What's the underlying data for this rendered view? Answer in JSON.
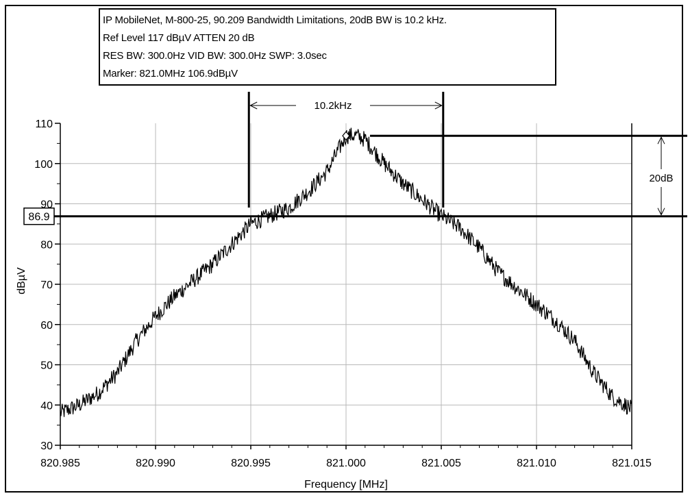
{
  "info": {
    "line1": "IP MobileNet, M-800-25, 90.209 Bandwidth Limitations, 20dB BW is 10.2 kHz.",
    "line2": "Ref Level 117 dBµV    ATTEN 20 dB",
    "line3": "RES BW: 300.0Hz  VID BW: 300.0Hz  SWP: 3.0sec",
    "line4": "Marker: 821.0MHz  106.9dBµV"
  },
  "annotations": {
    "bandwidth_label": "10.2kHz",
    "delta_label": "20dB",
    "level_label": "86.9"
  },
  "chart_data": {
    "type": "line",
    "title": "",
    "xlabel": "Frequency [MHz]",
    "ylabel": "dBµV",
    "xlim": [
      820.985,
      821.015
    ],
    "ylim": [
      30,
      110
    ],
    "grid": true,
    "x_ticks": [
      "820.985",
      "820.990",
      "820.995",
      "821.000",
      "821.005",
      "821.010",
      "821.015"
    ],
    "y_ticks": [
      "30",
      "40",
      "50",
      "60",
      "70",
      "80",
      "90",
      "100",
      "110"
    ],
    "series": [
      {
        "x": [
          820.985,
          820.986,
          820.987,
          820.988,
          820.989,
          820.99,
          820.991,
          820.992,
          820.993,
          820.994,
          820.995,
          820.996,
          820.997,
          820.998,
          820.999,
          821.0,
          821.0005,
          821.001,
          821.002,
          821.003,
          821.004,
          821.005,
          821.006,
          821.007,
          821.008,
          821.009,
          821.01,
          821.011,
          821.012,
          821.013,
          821.014,
          821.015
        ],
        "values": [
          38,
          40,
          43,
          48,
          56,
          62,
          67,
          71,
          75,
          80,
          85,
          87,
          89,
          93,
          98,
          106.9,
          107,
          106,
          100,
          95,
          91,
          87,
          84,
          79,
          73,
          69,
          65,
          61,
          56,
          48,
          42,
          39
        ]
      }
    ],
    "marker": {
      "x": 821.0,
      "y": 106.9
    },
    "markers_lines": {
      "bandwidth_left_x": 820.9949,
      "bandwidth_right_x": 821.0051,
      "reference_level_y": 106.9,
      "minus_20db_level_y": 86.9
    }
  }
}
